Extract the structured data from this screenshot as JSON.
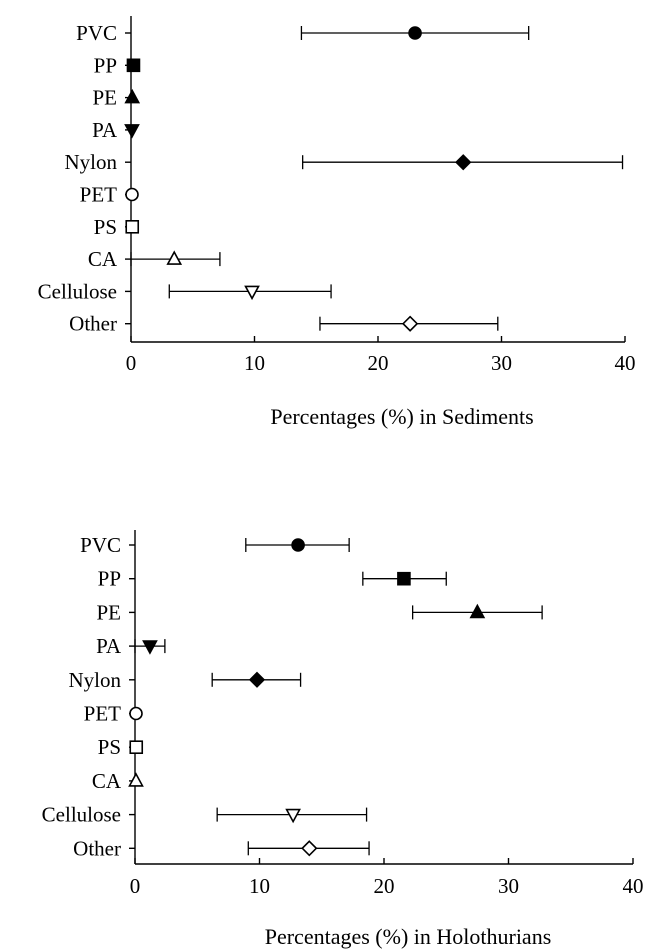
{
  "chart_data": [
    {
      "type": "scatter",
      "xlabel": "Percentages (%) in Sediments",
      "xlim": [
        0,
        40
      ],
      "xticks": [
        0,
        10,
        20,
        30,
        40
      ],
      "grid": false,
      "points": [
        {
          "category": "PVC",
          "value": 23.0,
          "err_low": 13.8,
          "err_high": 32.2,
          "marker": "circle-filled"
        },
        {
          "category": "PP",
          "value": 0.2,
          "err_low": 0.2,
          "err_high": 0.2,
          "marker": "square-filled"
        },
        {
          "category": "PE",
          "value": 0.1,
          "err_low": 0.1,
          "err_high": 0.1,
          "marker": "triangle-up-filled"
        },
        {
          "category": "PA",
          "value": 0.0,
          "err_low": 0.0,
          "err_high": 0.0,
          "marker": "triangle-down-filled"
        },
        {
          "category": "Nylon",
          "value": 26.9,
          "err_low": 13.9,
          "err_high": 39.8,
          "marker": "diamond-filled"
        },
        {
          "category": "PET",
          "value": 0.0,
          "err_low": 0.0,
          "err_high": 0.0,
          "marker": "circle-open"
        },
        {
          "category": "PS",
          "value": 0.1,
          "err_low": 0.1,
          "err_high": 0.1,
          "marker": "square-open"
        },
        {
          "category": "CA",
          "value": 3.5,
          "err_low": 0.0,
          "err_high": 7.2,
          "marker": "triangle-up-open"
        },
        {
          "category": "Cellulose",
          "value": 9.8,
          "err_low": 3.1,
          "err_high": 16.2,
          "marker": "triangle-down-open"
        },
        {
          "category": "Other",
          "value": 22.6,
          "err_low": 15.3,
          "err_high": 29.7,
          "marker": "diamond-open"
        }
      ]
    },
    {
      "type": "scatter",
      "xlabel": "Percentages (%) in Holothurians",
      "xlim": [
        0,
        40
      ],
      "xticks": [
        0,
        10,
        20,
        30,
        40
      ],
      "grid": false,
      "points": [
        {
          "category": "PVC",
          "value": 13.1,
          "err_low": 8.9,
          "err_high": 17.2,
          "marker": "circle-filled"
        },
        {
          "category": "PP",
          "value": 21.6,
          "err_low": 18.3,
          "err_high": 25.0,
          "marker": "square-filled"
        },
        {
          "category": "PE",
          "value": 27.5,
          "err_low": 22.3,
          "err_high": 32.7,
          "marker": "triangle-up-filled"
        },
        {
          "category": "PA",
          "value": 1.2,
          "err_low": 0.0,
          "err_high": 2.4,
          "marker": "triangle-down-filled"
        },
        {
          "category": "Nylon",
          "value": 9.8,
          "err_low": 6.2,
          "err_high": 13.3,
          "marker": "diamond-filled"
        },
        {
          "category": "PET",
          "value": 0.0,
          "err_low": 0.0,
          "err_high": 0.0,
          "marker": "circle-open"
        },
        {
          "category": "PS",
          "value": 0.1,
          "err_low": 0.1,
          "err_high": 0.1,
          "marker": "square-open"
        },
        {
          "category": "CA",
          "value": 0.0,
          "err_low": 0.0,
          "err_high": 0.0,
          "marker": "triangle-up-open"
        },
        {
          "category": "Cellulose",
          "value": 12.7,
          "err_low": 6.6,
          "err_high": 18.6,
          "marker": "triangle-down-open"
        },
        {
          "category": "Other",
          "value": 14.0,
          "err_low": 9.1,
          "err_high": 18.8,
          "marker": "diamond-open"
        }
      ]
    }
  ]
}
